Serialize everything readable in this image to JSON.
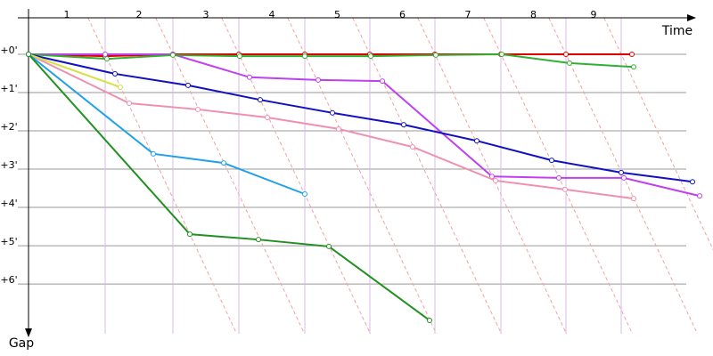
{
  "chart_data": {
    "type": "line",
    "x_label": "Time",
    "y_label": "Gap",
    "categories": [
      "1",
      "2",
      "3",
      "4",
      "5",
      "6",
      "7",
      "8",
      "9"
    ],
    "lap_lines": [
      86,
      162,
      236,
      310,
      383,
      456,
      530,
      603,
      665
    ],
    "xlim": [
      0,
      748
    ],
    "ylim": [
      0,
      7.3
    ],
    "yticks": [
      {
        "value": 0,
        "label": "+0'"
      },
      {
        "value": 1,
        "label": "+1'"
      },
      {
        "value": 2,
        "label": "+2'"
      },
      {
        "value": 3,
        "label": "+3'"
      },
      {
        "value": 4,
        "label": "+4'"
      },
      {
        "value": 5,
        "label": "+5'"
      },
      {
        "value": 6,
        "label": "+6'"
      }
    ],
    "grid": true,
    "series": [
      {
        "color": "#e00000",
        "x": [
          0,
          86,
          162,
          236,
          310,
          383,
          456,
          530,
          603,
          677
        ],
        "values": [
          0,
          0.05,
          0,
          0,
          0,
          0,
          0,
          0,
          0,
          0
        ]
      },
      {
        "color": "#c040f0",
        "x": [
          0,
          86,
          162,
          248,
          325,
          397,
          520,
          595,
          668,
          753
        ],
        "values": [
          0,
          0,
          0,
          0.6,
          0.67,
          0.7,
          3.19,
          3.23,
          3.23,
          3.7
        ]
      },
      {
        "color": "#30b030",
        "x": [
          0,
          88,
          162,
          237,
          310,
          384,
          457,
          531,
          607,
          679
        ],
        "values": [
          0,
          0.12,
          0.02,
          0.05,
          0.05,
          0.05,
          0.02,
          0,
          0.23,
          0.33
        ]
      },
      {
        "color": "#1010c0",
        "x": [
          0,
          97,
          179,
          260,
          341,
          421,
          503,
          587,
          665,
          745
        ],
        "values": [
          0,
          0.51,
          0.81,
          1.19,
          1.53,
          1.84,
          2.26,
          2.77,
          3.09,
          3.33
        ]
      },
      {
        "color": "#f090b0",
        "x": [
          0,
          113,
          190,
          268,
          348,
          431,
          524,
          602,
          679
        ],
        "values": [
          0,
          1.28,
          1.44,
          1.65,
          1.95,
          2.42,
          3.3,
          3.53,
          3.77
        ]
      },
      {
        "color": "#d8e040",
        "x": [
          0,
          103
        ],
        "values": [
          0,
          0.86
        ]
      },
      {
        "color": "#20a0e8",
        "x": [
          0,
          140,
          219,
          310
        ],
        "values": [
          0,
          2.6,
          2.84,
          3.65
        ]
      },
      {
        "color": "#209020",
        "x": [
          0,
          181,
          258,
          337,
          450
        ],
        "values": [
          0,
          4.7,
          4.84,
          5.02,
          6.95
        ]
      }
    ]
  }
}
